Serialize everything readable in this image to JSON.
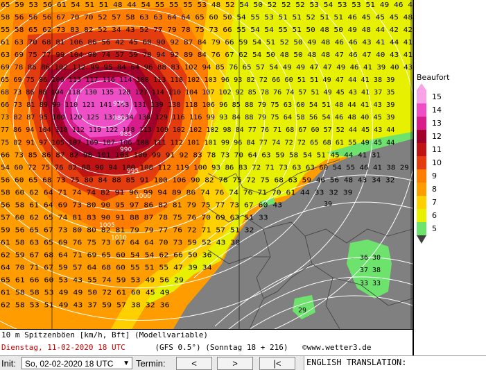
{
  "colors": {
    "bft5": "#6de26d",
    "bft6": "#e6f000",
    "bft7": "#ffd000",
    "bft8": "#ff9d00",
    "bft9": "#ff7d00",
    "bft10": "#e33c0e",
    "bft11": "#c01414",
    "bft12": "#a0002a",
    "bft13": "#d81c8a",
    "bft14": "#ee4fc7",
    "bft15": "#f7a4e6",
    "land": "#808080",
    "isobar": "#ffffff"
  },
  "map": {
    "pressure_labels": [
      "975",
      "980",
      "985",
      "990",
      "995",
      "1000",
      "1005",
      "1010"
    ],
    "value_rows": [
      "65 59 53 56 61 54 51 51 48 44 54 55 55 55 53 48 52 54 50 52 52 52 53 54 53 53 51 49 46 4",
      "58 56 56 56 67 70 70 52 57 58 63 63 64 64 65 60 50 54 55 53 51 51 52 51 51 46 45 45 45 48",
      "55 58 65 62 73 83 82 52 34 43 52 77 79 78 75 73 66 55 54 54 55 51 50 48 50 49 48 44 42 42",
      "61 63 70 68 81 106 86 56 42 45 60 90 92 87 84 79 66 59 54 51 52 50 49 48 46 46 43 41 44 41",
      "63 69 75 77 99 104 90 74 57 59 78 94 92 89 84 76 67 62 54 50 48 50 48 48 47 46 47 40 43 41",
      "69 78 86 86 102 112 99 95 84 64 96 88 83 102 94 85 76 65 57 54 49 49 47 47 49 46 41 39 40 43",
      "65 69 75 86 106 113 117 116 114 108 113 118 102 103 96 93 82 72 66 60 51 51 49 47 44 41 38 39",
      "68 73 86 88 104 118 130 135 128 127 114 110 104 107 102 92 85 78 76 74 57 51 49 45 43 41 37 35",
      "66 73 81 89 99 110 121 141 143 131 139 138 118 106 96 85 88 79 75 63 60 54 51 48 44 41 43 39",
      "73 82 87 95 100 120 125 131 134 130 129 116 116 99 93 84 88 79 75 64 58 56 54 46 48 40 45 39",
      "77 86 94 104 110 112 119 122 118 113 109 102 102 102 98 84 77 76 71 68 67 60 57 52 44 45 43 44",
      "75 82 91 97 105 107 109 107 106 108 111 112 101 101 99 96 84 77 74 72 72 65 68 61 55 49 45 44",
      "66 73 85 86 87 82 98 101 103 100 99 91 92 83 78 73 70 64 63 59 58 54 51 45 44 41 31",
      "54 60 72 75 76 82 88 90 94 100 108 112 119 100 93 86 83 72 71 73 63 63 60 54 55 46 41 38 29",
      "56 60 65 68 73 75 80 84 88 85 91 100 106 90 82 78 75 72 75 68 63 59 46 56 48 43 34 32",
      "58 60 62 64 71 74 74 82 91 96 99 94 89 86 74 76 74 76 71 70 61 44 33 32 39",
      "56 58 61 64 69 73 80 90 95 97 86 82 81 79 75 77 73 67 60 43",
      "57 60 62 65 74 81 83 90 91 88 87 78 75 76 70 69 63 51 33",
      "59 56 65 67 73 80 80 82 81 79 79 77 76 72 71 57 51 32",
      "61 58 63 65 69 76 75 73 67 64 64 70 73 59 52 43 30",
      "62 59 67 68 64 71 69 65 60 54 54 62 66 50 36",
      "64 70 71 67 59 57 64 68 60 55 51 55 47 39 34",
      "65 61 66 60 53 43 55 74 59 53 49 56 29",
      "61 58 58 53 49 49 50 72 61 60 45 49",
      "62 58 53 51 49 43 37 59 57 38 32 36"
    ],
    "island_labels": [
      "36",
      "30",
      "37",
      "38",
      "33",
      "33",
      "29",
      "39"
    ]
  },
  "legend": {
    "title": "Beaufort",
    "levels": [
      "15",
      "14",
      "13",
      "12",
      "11",
      "10",
      "9",
      "8",
      "7",
      "6",
      "5"
    ]
  },
  "info": {
    "line1": "10 m Spitzenböen [km/h, Bft] (Modellvariable)",
    "date": "Dienstag, 11-02-2020  18 UTC",
    "model": "(GFS 0.5°)  (Sonntag 18 + 216)",
    "credit": "©www.wetter3.de"
  },
  "toolbar": {
    "init_label": "Init:",
    "init_value": "So, 02-02-2020 18 UTC",
    "termin_label": "Termin:",
    "prev": "<",
    "next": ">",
    "first": "|<",
    "translation": "ENGLISH TRANSLATION:"
  }
}
